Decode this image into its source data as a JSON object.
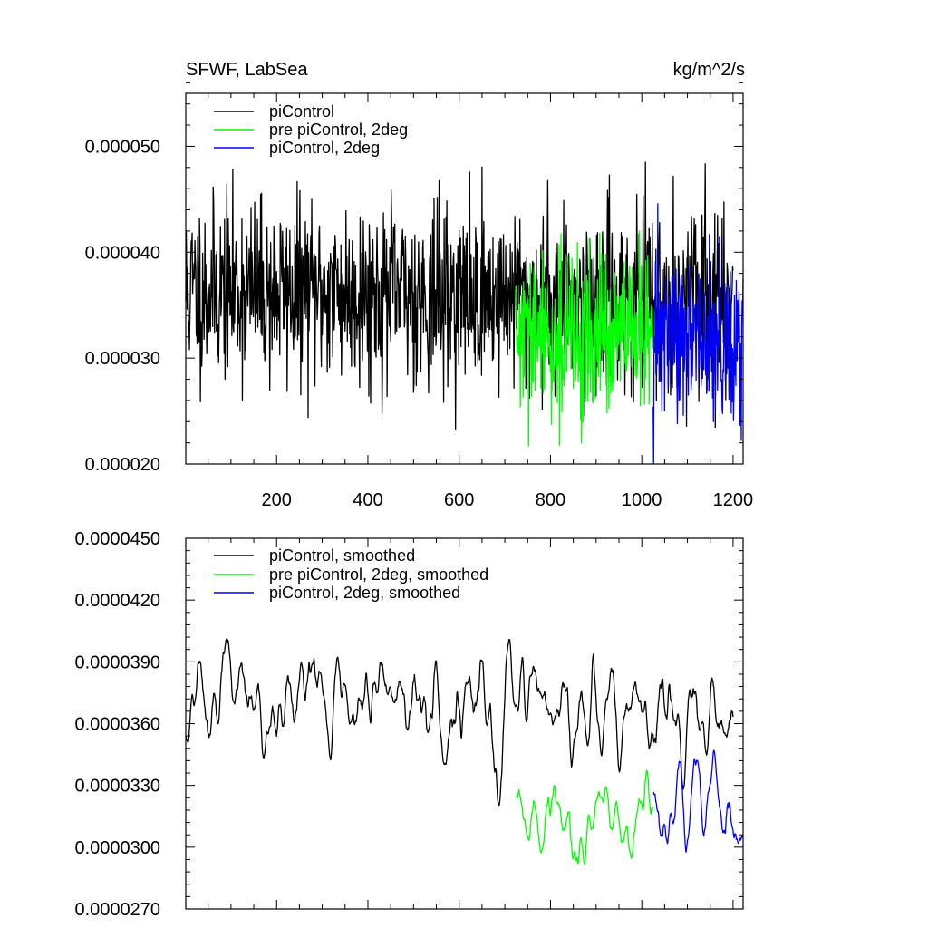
{
  "chart_data": [
    {
      "type": "line",
      "title": "SFWF, LabSea",
      "units": "kg/m^2/s",
      "xlim": [
        1,
        1222
      ],
      "ylim": [
        2e-05,
        5.5e-05
      ],
      "xticks": [
        200,
        400,
        600,
        800,
        1000,
        1200
      ],
      "xtick_labels": [
        "200",
        "400",
        "600",
        "800",
        "1000",
        "1200"
      ],
      "yticks": [
        2e-05,
        3e-05,
        4e-05,
        5e-05
      ],
      "ytick_labels": [
        "0.000020",
        "0.000030",
        "0.000040",
        "0.000050"
      ],
      "legend_position": "top-left",
      "series": [
        {
          "name": "piControl",
          "color": "#000000",
          "x_start": 1,
          "x_end": 1200,
          "mean": 3.65e-05,
          "amp": 4.2e-06,
          "drift": -1.2e-06,
          "seed": 11
        },
        {
          "name": "pre piControl, 2deg",
          "color": "#00ff00",
          "x_start": 725,
          "x_end": 1025,
          "mean": 3.15e-05,
          "amp": 3.8e-06,
          "drift": 6e-07,
          "seed": 29
        },
        {
          "name": "piControl, 2deg",
          "color": "#0000ff",
          "x_start": 1025,
          "x_end": 1222,
          "mean": 3.18e-05,
          "amp": 4e-06,
          "drift": -5e-07,
          "seed": 47
        }
      ]
    },
    {
      "type": "line",
      "title": "",
      "xlim": [
        1,
        1222
      ],
      "ylim": [
        2.7e-05,
        4.5e-05
      ],
      "xticks": [
        200,
        400,
        600,
        800,
        1000,
        1200
      ],
      "yticks": [
        2.7e-05,
        3e-05,
        3.3e-05,
        3.6e-05,
        3.9e-05,
        4.2e-05,
        4.5e-05
      ],
      "ytick_labels": [
        "0.0000270",
        "0.0000300",
        "0.0000330",
        "0.0000360",
        "0.0000390",
        "0.0000420",
        "0.0000450"
      ],
      "legend_position": "top-left",
      "series": [
        {
          "name": "piControl, smoothed",
          "color": "#000000",
          "x_start": 1,
          "x_end": 1200,
          "mean": 3.72e-05,
          "amp": 1.3e-06,
          "drift": -2e-07,
          "seed": 13
        },
        {
          "name": "pre piControl, 2deg, smoothed",
          "color": "#00ff00",
          "x_start": 725,
          "x_end": 1025,
          "mean": 3.08e-05,
          "amp": 1.1e-06,
          "drift": 4e-07,
          "seed": 31
        },
        {
          "name": "piControl, 2deg, smoothed",
          "color": "#0000ff",
          "x_start": 1025,
          "x_end": 1222,
          "mean": 3.25e-05,
          "amp": 1.2e-06,
          "drift": -2e-07,
          "seed": 53
        }
      ]
    }
  ]
}
